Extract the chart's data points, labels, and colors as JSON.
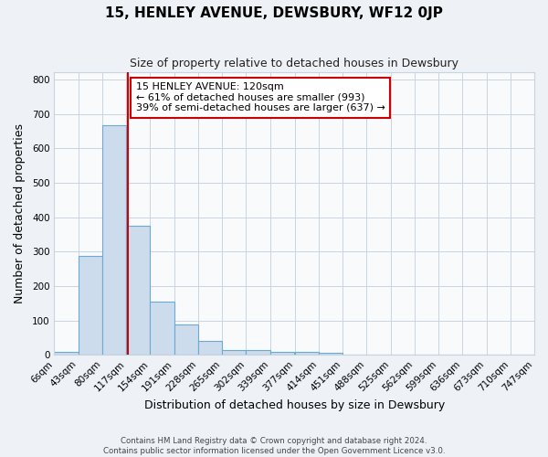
{
  "title": "15, HENLEY AVENUE, DEWSBURY, WF12 0JP",
  "subtitle": "Size of property relative to detached houses in Dewsbury",
  "xlabel": "Distribution of detached houses by size in Dewsbury",
  "ylabel": "Number of detached properties",
  "bin_edges": [
    6,
    43,
    80,
    117,
    154,
    191,
    228,
    265,
    302,
    339,
    377,
    414,
    451,
    488,
    525,
    562,
    599,
    636,
    673,
    710,
    747
  ],
  "bin_labels": [
    "6sqm",
    "43sqm",
    "80sqm",
    "117sqm",
    "154sqm",
    "191sqm",
    "228sqm",
    "265sqm",
    "302sqm",
    "339sqm",
    "377sqm",
    "414sqm",
    "451sqm",
    "488sqm",
    "525sqm",
    "562sqm",
    "599sqm",
    "636sqm",
    "673sqm",
    "710sqm",
    "747sqm"
  ],
  "counts": [
    8,
    288,
    667,
    375,
    155,
    88,
    40,
    13,
    13,
    10,
    10,
    5,
    0,
    0,
    0,
    0,
    0,
    0,
    0,
    0
  ],
  "bar_color": "#ccdcec",
  "bar_edge_color": "#6aaad4",
  "property_value": 120,
  "vline_x": 120,
  "vline_color": "#cc0000",
  "annotation_line1": "15 HENLEY AVENUE: 120sqm",
  "annotation_line2": "← 61% of detached houses are smaller (993)",
  "annotation_line3": "39% of semi-detached houses are larger (637) →",
  "annotation_box_edge_color": "#cc0000",
  "annotation_box_face_color": "#ffffff",
  "ylim": [
    0,
    820
  ],
  "yticks": [
    0,
    100,
    200,
    300,
    400,
    500,
    600,
    700,
    800
  ],
  "footer_line1": "Contains HM Land Registry data © Crown copyright and database right 2024.",
  "footer_line2": "Contains public sector information licensed under the Open Government Licence v3.0.",
  "bg_color": "#eef2f6",
  "plot_bg_color": "#f8fafc",
  "grid_color": "#c8d4e0"
}
